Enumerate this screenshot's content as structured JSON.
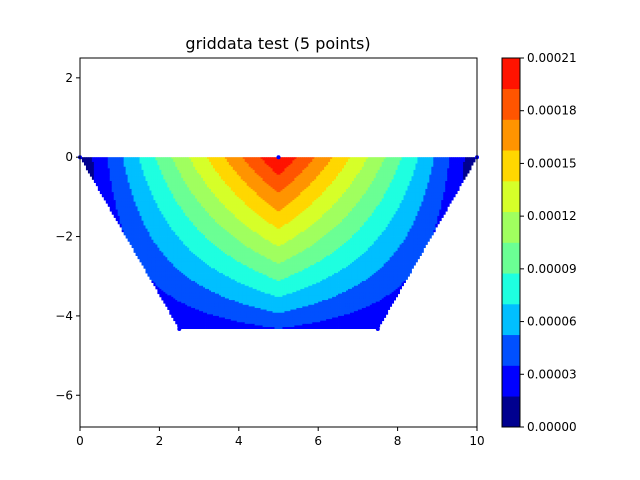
{
  "chart_data": {
    "type": "heatmap",
    "title": "griddata test (5 points)",
    "xlabel": "",
    "ylabel": "",
    "xlim": [
      0,
      10
    ],
    "ylim": [
      -6.8,
      2.5
    ],
    "x_ticks": [
      "0",
      "2",
      "4",
      "6",
      "8",
      "10"
    ],
    "x_tick_values": [
      0,
      2,
      4,
      6,
      8,
      10
    ],
    "y_ticks": [
      "2",
      "0",
      "−2",
      "−4",
      "−6"
    ],
    "y_tick_values": [
      2,
      0,
      -2,
      -4,
      -6
    ],
    "grid": false,
    "points": [
      {
        "x": 0,
        "y": 0
      },
      {
        "x": 5,
        "y": 0
      },
      {
        "x": 10,
        "y": 0
      },
      {
        "x": 2.5,
        "y": -4.33
      },
      {
        "x": 7.5,
        "y": -4.33
      }
    ],
    "contour_levels": [
      0,
      1.75e-05,
      3.5e-05,
      5.25e-05,
      7e-05,
      8.75e-05,
      0.000105,
      0.0001225,
      0.00014,
      0.0001575,
      0.000175,
      0.0001925,
      0.00021
    ],
    "colors": [
      "#00008f",
      "#0000ff",
      "#0050ff",
      "#00bfff",
      "#1effe0",
      "#6bff94",
      "#a0ff5f",
      "#d6ff29",
      "#ffd700",
      "#ff9400",
      "#ff5500",
      "#ff1300",
      "#a60000"
    ],
    "colorbar": {
      "range": [
        0,
        0.00021
      ],
      "tick_values": [
        0,
        3e-05,
        6e-05,
        9e-05,
        0.00012,
        0.00015,
        0.00018,
        0.00021
      ],
      "tick_labels": [
        "0.00000",
        "0.00003",
        "0.00006",
        "0.00009",
        "0.00012",
        "0.00015",
        "0.00018",
        "0.00021"
      ],
      "placement": "right"
    }
  }
}
